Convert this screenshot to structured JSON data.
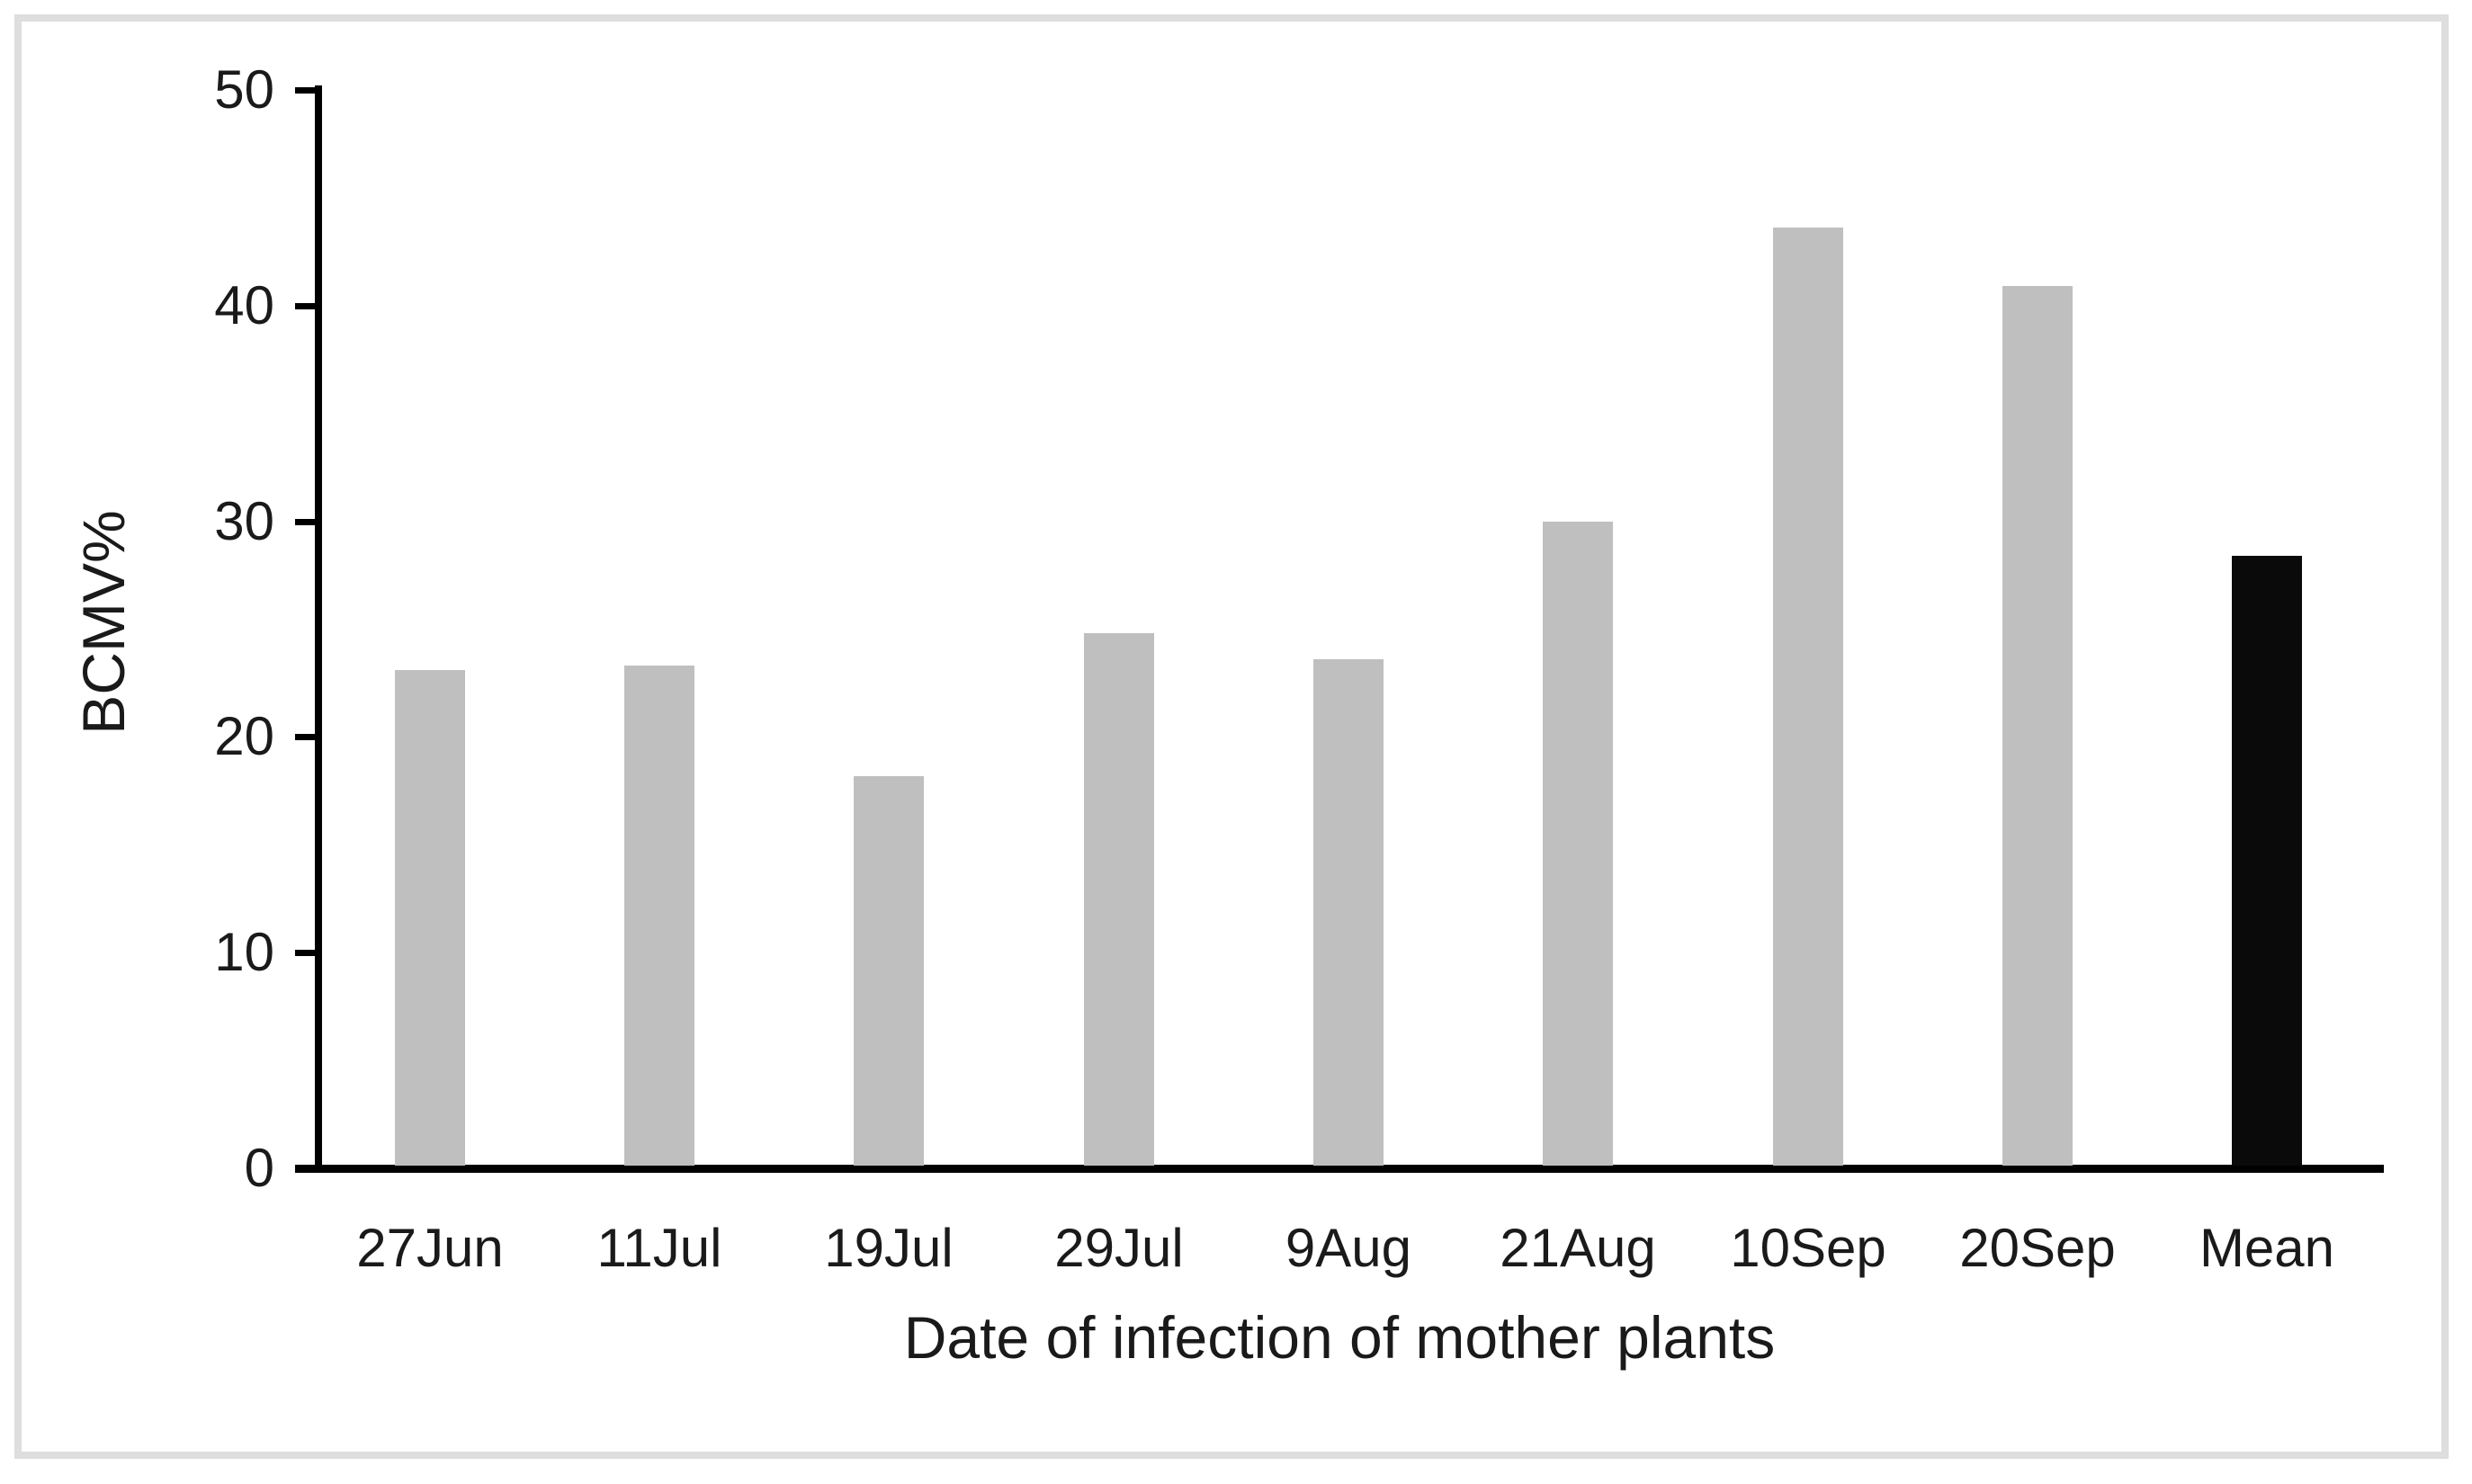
{
  "chart_data": {
    "type": "bar",
    "categories": [
      "27Jun",
      "11Jul",
      "19Jul",
      "29Jul",
      "9Aug",
      "21Aug",
      "10Sep",
      "20Sep",
      "Mean"
    ],
    "values": [
      23.1,
      23.3,
      18.2,
      24.8,
      23.6,
      30.0,
      43.6,
      40.9,
      28.4
    ],
    "title": "",
    "xlabel": "Date of infection of mother plants",
    "ylabel": "BCMV%",
    "ylim": [
      0,
      50
    ],
    "yticks": [
      0,
      10,
      20,
      30,
      40,
      50
    ],
    "grid": "off",
    "legend": "none",
    "series_color_default": "#bfbfbf",
    "series_color_mean": "#0a0a0a"
  },
  "colors": {
    "background": "#ffffff",
    "frame_border": "#dedede",
    "axis": "#000000",
    "text": "#1a1a1a"
  }
}
